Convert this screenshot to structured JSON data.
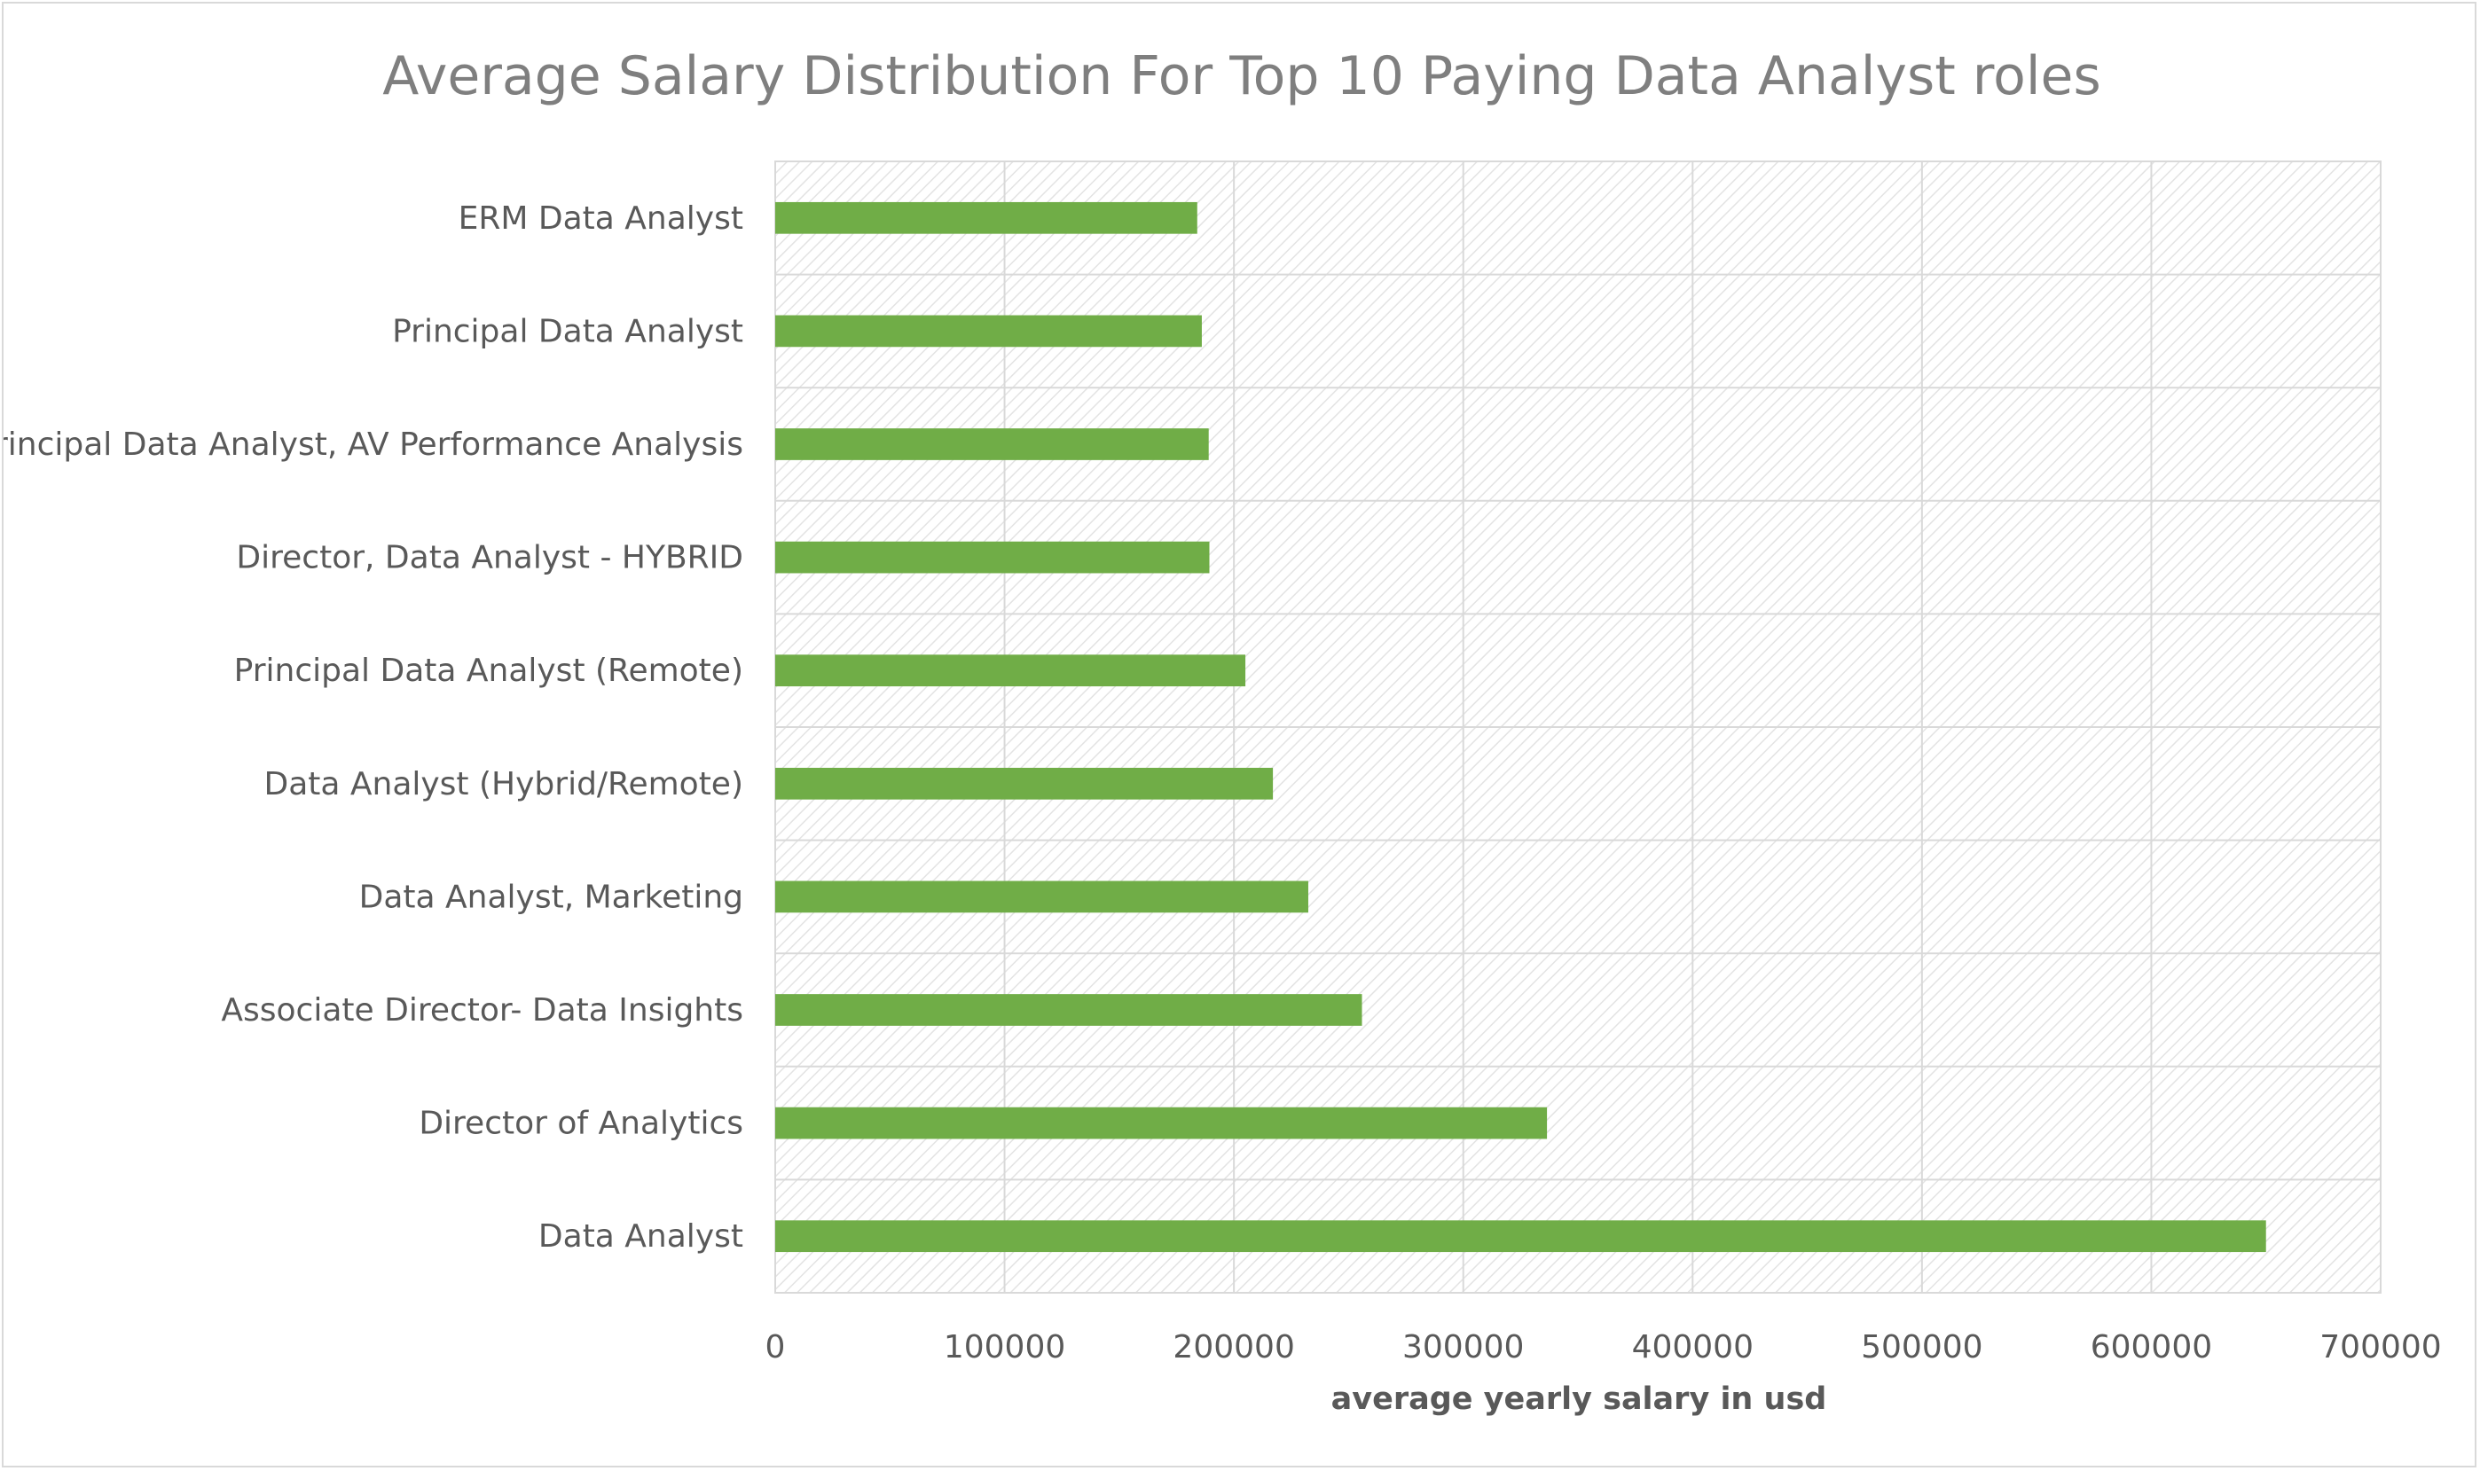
{
  "chart_data": {
    "type": "bar",
    "orientation": "horizontal",
    "title": "Average Salary Distribution For Top 10 Paying Data Analyst roles",
    "xlabel": "average yearly salary in usd",
    "ylabel": "",
    "xlim": [
      0,
      700000
    ],
    "xticks": [
      0,
      100000,
      200000,
      300000,
      400000,
      500000,
      600000,
      700000
    ],
    "grid": true,
    "legend": "none",
    "bar_color": "#70ad47",
    "categories": [
      "ERM Data Analyst",
      "Principal Data Analyst",
      "Principal Data Analyst, AV Performance Analysis",
      "Director, Data Analyst - HYBRID",
      "Principal Data Analyst (Remote)",
      "Data Analyst (Hybrid/Remote)",
      "Data Analyst, Marketing",
      "Associate Director- Data Insights",
      "Director of Analytics",
      "Data Analyst"
    ],
    "values": [
      184000,
      186000,
      189000,
      189309,
      205000,
      217000,
      232423,
      255830,
      336500,
      650000
    ]
  }
}
